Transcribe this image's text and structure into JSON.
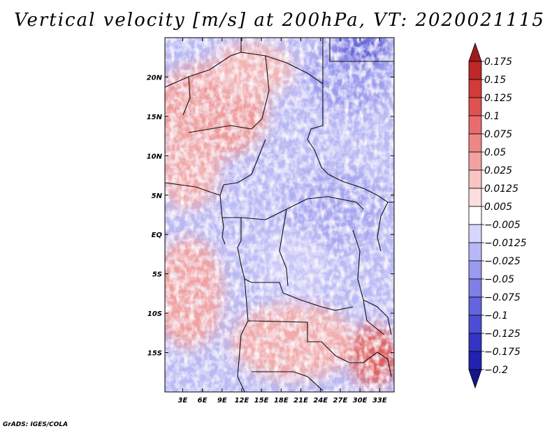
{
  "chart_data": {
    "type": "heatmap",
    "title": "Vertical velocity [m/s] at 200hPa, VT: 2020021115",
    "variable": "Vertical velocity",
    "units": "m/s",
    "level": "200hPa",
    "valid_time": "2020021115",
    "x_ticks": [
      "3E",
      "6E",
      "9E",
      "12E",
      "15E",
      "18E",
      "21E",
      "24E",
      "27E",
      "30E",
      "33E"
    ],
    "x_tick_values": [
      3,
      6,
      9,
      12,
      15,
      18,
      21,
      24,
      27,
      30,
      33
    ],
    "y_ticks": [
      "20N",
      "15N",
      "10N",
      "5N",
      "EQ",
      "5S",
      "10S",
      "15S"
    ],
    "y_tick_values": [
      20,
      15,
      10,
      5,
      0,
      -5,
      -10,
      -15
    ],
    "xlim": [
      0.3,
      35.2
    ],
    "ylim": [
      -20,
      25
    ],
    "colorbar": {
      "levels": [
        "0.175",
        "0.15",
        "0.125",
        "0.1",
        "0.075",
        "0.05",
        "0.025",
        "0.0125",
        "0.005",
        "-0.005",
        "-0.0125",
        "-0.025",
        "-0.05",
        "-0.075",
        "-0.1",
        "-0.125",
        "-0.175",
        "-0.2"
      ],
      "colors": [
        "#a01c1c",
        "#be2828",
        "#d33a3a",
        "#e05252",
        "#e96c6c",
        "#ee8686",
        "#f3a2a2",
        "#f8c4c4",
        "#fcdede",
        "#ffffff",
        "#d6d6fc",
        "#b8b8f6",
        "#9a9aee",
        "#7e7ee6",
        "#6464de",
        "#4c4cd4",
        "#3434c4",
        "#2222b0",
        "#15158c"
      ],
      "extend": "both"
    },
    "credit": "GrADS: IGES/COLA"
  }
}
